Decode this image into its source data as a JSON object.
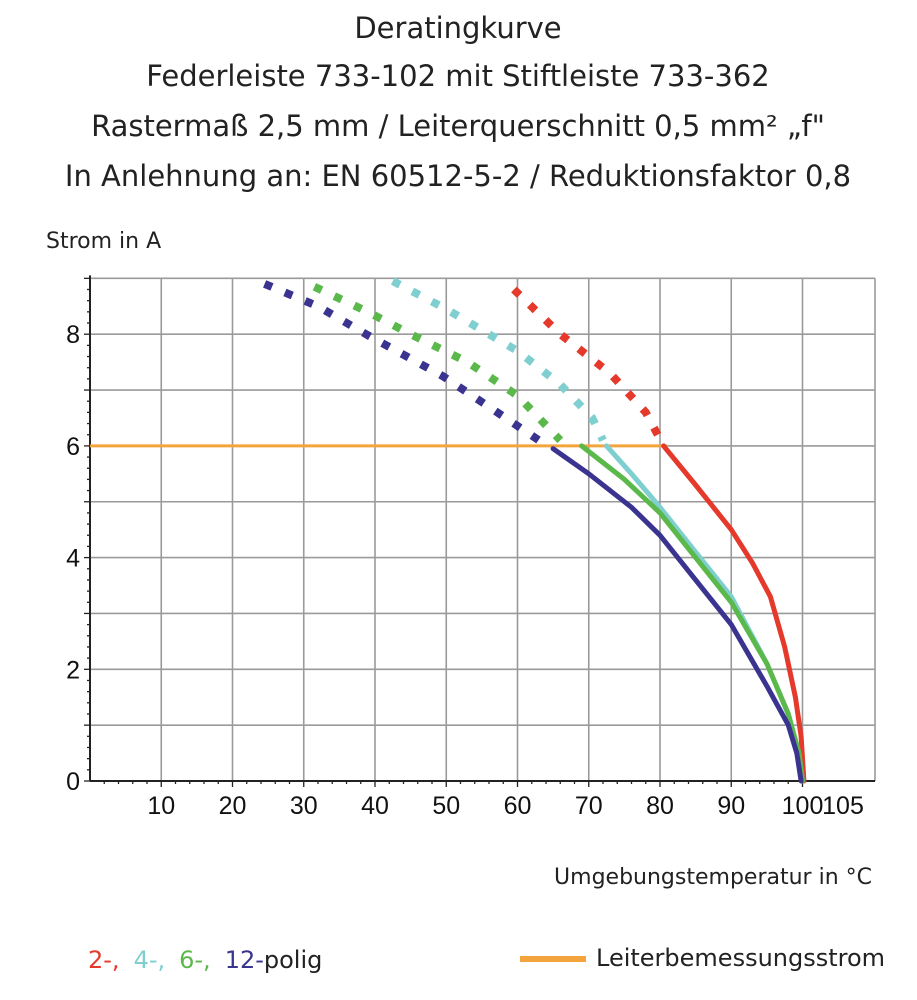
{
  "chart_data": {
    "type": "line",
    "title_lines": [
      "Deratingkurve",
      "Federleiste 733-102 mit Stiftleiste 733-362",
      "Rastermaß 2,5 mm / Leiterquerschnitt 0,5 mm² „f\"",
      "In Anlehnung an: EN 60512-5-2 / Reduktionsfaktor 0,8"
    ],
    "ylabel": "Strom in A",
    "xlabel": "Umgebungstemperatur in °C",
    "xlim": [
      0,
      105
    ],
    "ylim": [
      0,
      9
    ],
    "grid": true,
    "x_ticks": [
      "10",
      "20",
      "30",
      "40",
      "50",
      "60",
      "70",
      "80",
      "90",
      "100",
      "105"
    ],
    "y_ticks": [
      "0",
      "2",
      "4",
      "6",
      "8"
    ],
    "series": [
      {
        "legend": "2-,",
        "color": "#e5392c",
        "dashed": [
          [
            59.5,
            8.8
          ],
          [
            66,
            8.0
          ],
          [
            73,
            7.3
          ],
          [
            78,
            6.6
          ],
          [
            80.5,
            6.0
          ]
        ],
        "solid": [
          [
            80.5,
            6.0
          ],
          [
            85,
            5.3
          ],
          [
            90,
            4.5
          ],
          [
            93,
            3.9
          ],
          [
            95.5,
            3.3
          ],
          [
            97.5,
            2.4
          ],
          [
            99,
            1.5
          ],
          [
            99.8,
            0.8
          ],
          [
            100.2,
            0
          ]
        ]
      },
      {
        "legend": "4-,",
        "color": "#7fcfd0",
        "dashed": [
          [
            42.5,
            8.95
          ],
          [
            50,
            8.45
          ],
          [
            60,
            7.7
          ],
          [
            66,
            7.1
          ],
          [
            70.5,
            6.5
          ],
          [
            72,
            6.1
          ]
        ],
        "solid": [
          [
            72.5,
            6.0
          ],
          [
            76,
            5.5
          ],
          [
            80,
            4.9
          ],
          [
            85,
            4.1
          ],
          [
            90,
            3.3
          ],
          [
            95,
            2.1
          ],
          [
            98,
            1.2
          ],
          [
            99.5,
            0.5
          ],
          [
            100,
            0
          ]
        ]
      },
      {
        "legend": "6-,",
        "color": "#5bb84b",
        "dashed": [
          [
            31.5,
            8.85
          ],
          [
            39,
            8.4
          ],
          [
            45,
            8.0
          ],
          [
            53,
            7.5
          ],
          [
            60,
            6.9
          ],
          [
            66,
            6.1
          ]
        ],
        "solid": [
          [
            69,
            6.0
          ],
          [
            75,
            5.4
          ],
          [
            80,
            4.8
          ],
          [
            85,
            4.0
          ],
          [
            90,
            3.2
          ],
          [
            95,
            2.1
          ],
          [
            98,
            1.2
          ],
          [
            99.5,
            0.5
          ],
          [
            100,
            0
          ]
        ]
      },
      {
        "legend": "12-",
        "color": "#3a3490",
        "dashed": [
          [
            24.5,
            8.9
          ],
          [
            32,
            8.5
          ],
          [
            39,
            7.98
          ],
          [
            49.5,
            7.25
          ],
          [
            56,
            6.7
          ],
          [
            63,
            6.1
          ]
        ],
        "solid": [
          [
            65,
            5.95
          ],
          [
            70,
            5.5
          ],
          [
            76,
            4.9
          ],
          [
            80,
            4.4
          ],
          [
            85,
            3.6
          ],
          [
            90,
            2.8
          ],
          [
            95,
            1.7
          ],
          [
            98,
            1.0
          ],
          [
            99.2,
            0.5
          ],
          [
            99.8,
            0
          ]
        ]
      }
    ],
    "reference_line": {
      "label": "Leiterbemessungsstrom",
      "color": "#f4a43c",
      "y": 6,
      "x_range": [
        0,
        81
      ]
    },
    "legend_suffix": "polig",
    "legend_placement": "bottom"
  }
}
